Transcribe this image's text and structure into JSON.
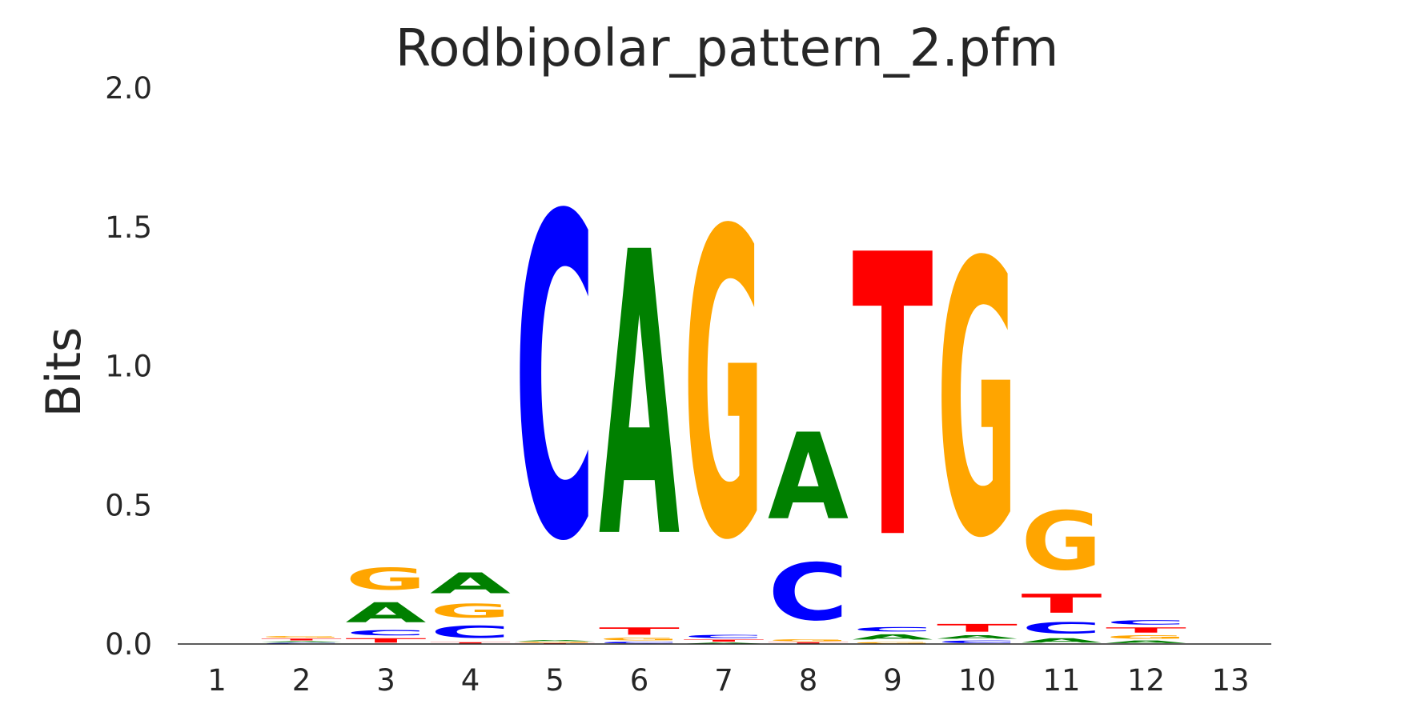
{
  "chart_data": {
    "type": "sequence-logo",
    "title": "Rodbipolar_pattern_2.pfm",
    "xlabel": "",
    "ylabel": "Bits",
    "ylim": [
      0,
      2.0
    ],
    "yticks": [
      "0.0",
      "0.5",
      "1.0",
      "1.5",
      "2.0"
    ],
    "positions": [
      "1",
      "2",
      "3",
      "4",
      "5",
      "6",
      "7",
      "8",
      "9",
      "10",
      "11",
      "12",
      "13"
    ],
    "grid": false,
    "colors": {
      "A": "#008000",
      "C": "#0000ff",
      "G": "#ffa500",
      "T": "#ff0000"
    },
    "stacks": [
      [],
      [
        {
          "base": "C",
          "bits": 0.005
        },
        {
          "base": "A",
          "bits": 0.006
        },
        {
          "base": "T",
          "bits": 0.01
        },
        {
          "base": "G",
          "bits": 0.009
        }
      ],
      [
        {
          "base": "T",
          "bits": 0.025
        },
        {
          "base": "C",
          "bits": 0.03
        },
        {
          "base": "A",
          "bits": 0.115
        },
        {
          "base": "G",
          "bits": 0.125
        }
      ],
      [
        {
          "base": "T",
          "bits": 0.008
        },
        {
          "base": "C",
          "bits": 0.07
        },
        {
          "base": "G",
          "bits": 0.08
        },
        {
          "base": "A",
          "bits": 0.12
        }
      ],
      [
        {
          "base": "T",
          "bits": 0.004
        },
        {
          "base": "G",
          "bits": 0.005
        },
        {
          "base": "A",
          "bits": 0.006
        },
        {
          "base": "C",
          "bits": 1.86
        }
      ],
      [
        {
          "base": "C",
          "bits": 0.01
        },
        {
          "base": "G",
          "bits": 0.015
        },
        {
          "base": "T",
          "bits": 0.042
        },
        {
          "base": "A",
          "bits": 1.64
        }
      ],
      [
        {
          "base": "A",
          "bits": 0.006
        },
        {
          "base": "T",
          "bits": 0.012
        },
        {
          "base": "C",
          "bits": 0.018
        },
        {
          "base": "G",
          "bits": 1.77
        }
      ],
      [
        {
          "base": "T",
          "bits": 0.008
        },
        {
          "base": "G",
          "bits": 0.012
        },
        {
          "base": "C",
          "bits": 0.33
        },
        {
          "base": "A",
          "bits": 0.5
        }
      ],
      [
        {
          "base": "G",
          "bits": 0.01
        },
        {
          "base": "A",
          "bits": 0.03
        },
        {
          "base": "C",
          "bits": 0.025
        },
        {
          "base": "T",
          "bits": 1.63
        }
      ],
      [
        {
          "base": "C",
          "bits": 0.015
        },
        {
          "base": "A",
          "bits": 0.02
        },
        {
          "base": "T",
          "bits": 0.045
        },
        {
          "base": "G",
          "bits": 1.58
        }
      ],
      [
        {
          "base": "A",
          "bits": 0.025
        },
        {
          "base": "C",
          "bits": 0.065
        },
        {
          "base": "T",
          "bits": 0.11
        },
        {
          "base": "G",
          "bits": 0.34
        }
      ],
      [
        {
          "base": "A",
          "bits": 0.015
        },
        {
          "base": "G",
          "bits": 0.02
        },
        {
          "base": "T",
          "bits": 0.03
        },
        {
          "base": "C",
          "bits": 0.025
        }
      ],
      []
    ]
  }
}
